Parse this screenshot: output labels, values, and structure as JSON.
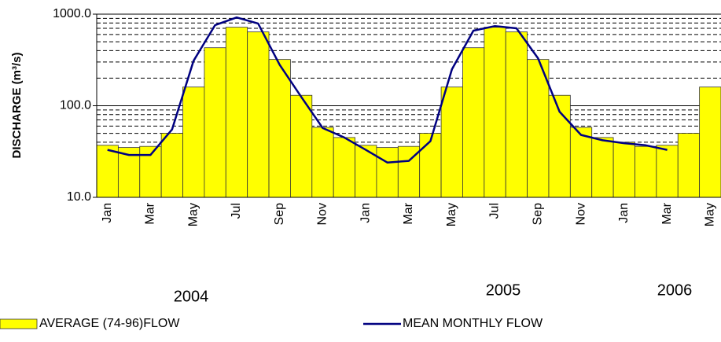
{
  "chart_data": {
    "type": "bar",
    "y_label": "DISCHARGE (m³/s)",
    "log_y": true,
    "ylim": [
      10,
      1000
    ],
    "yticks": [
      {
        "value": 10,
        "label": "10.0"
      },
      {
        "value": 100,
        "label": "100.0"
      },
      {
        "value": 1000,
        "label": "1000.0"
      }
    ],
    "minor_gridlines": [
      20,
      30,
      40,
      50,
      60,
      70,
      80,
      90,
      200,
      300,
      400,
      500,
      600,
      700,
      800,
      900
    ],
    "grid": true,
    "legend": "bottom",
    "categories": [
      "Jan",
      null,
      "Mar",
      null,
      "May",
      null,
      "Jul",
      null,
      "Sep",
      null,
      "Nov",
      null,
      "Jan",
      null,
      "Mar",
      null,
      "May",
      null,
      "Jul",
      null,
      "Sep",
      null,
      "Nov",
      null,
      "Jan",
      null,
      "Mar",
      null,
      "May"
    ],
    "annotations": [
      "2004",
      "2005",
      "2006"
    ],
    "series": [
      {
        "name": "AVERAGE (74-96)FLOW",
        "type": "bar",
        "color": "#ffff00",
        "values": [
          37,
          35,
          36,
          50,
          160,
          430,
          720,
          640,
          320,
          130,
          58,
          45,
          37,
          35,
          36,
          50,
          160,
          430,
          720,
          640,
          320,
          130,
          58,
          45,
          40,
          36,
          37,
          50,
          160
        ]
      },
      {
        "name": "MEAN MONTHLY FLOW",
        "type": "line",
        "color": "#000080",
        "values": [
          33,
          29,
          29,
          55,
          310,
          760,
          920,
          790,
          280,
          125,
          57,
          45,
          33,
          24,
          25,
          41,
          250,
          660,
          740,
          700,
          330,
          86,
          48,
          42,
          39,
          37,
          33,
          null,
          null
        ]
      }
    ]
  }
}
